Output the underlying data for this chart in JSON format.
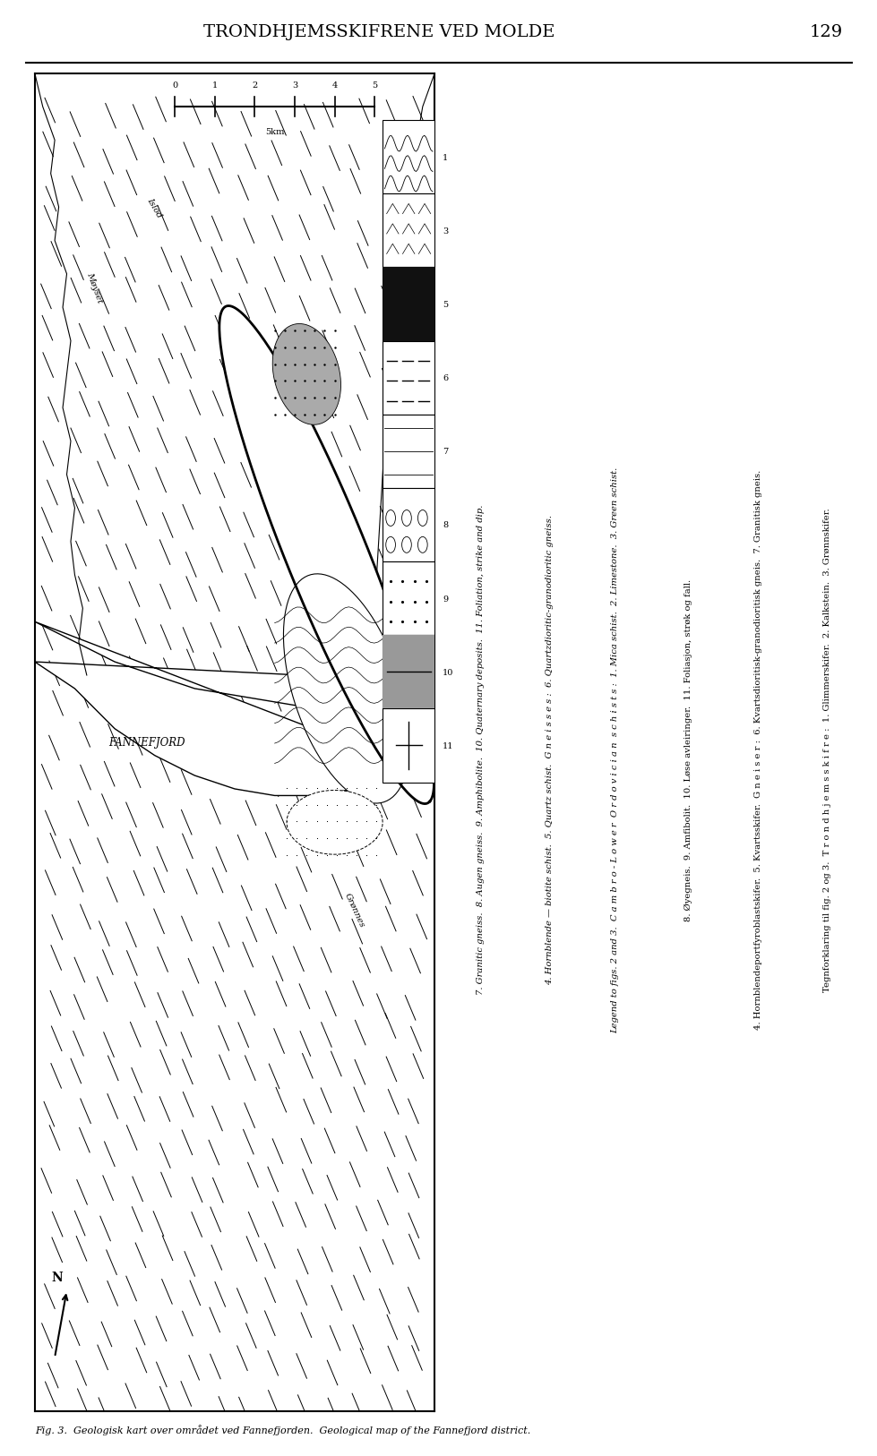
{
  "title": "TRONDHJEMSSKIFRENE VED MOLDE",
  "page_number": "129",
  "fig_no": "Fig. 3.",
  "caption_no": "Geologisk kart over området ved Fannefjorden.",
  "caption_en": "Geological map of the Fannefjord district.",
  "text_lines": [
    "Tegnforklaring til fig. 2 og 3.  T r o n d h j e m s s k i f r e :  1. Glimmerskifer.  2. Kalkstein.  3. Grønnskifer.",
    "4. Hornblendeportfyroblastskifer.  5. Kvartsskifer.  G n e i s e r :  6. Kvartsdioritisk-granodioritisk gneis.  7. Granitisk gneis.",
    "8. Øyegneis.  9. Amfibolit.  10. Løse avleiringer.  11. Foliasjon, strøk og fall.",
    "Legend to figs. 2 and 3.  C a m b r o - L o w e r  O r d o v i c i a n  s c h i s t s :  1. Mica schist.  2. Limestone.  3. Green schist.",
    "4. Hornblende — biotite schist.  5. Quartz schist.  G n e i s s e s :  6. Quartzdioritic-granodioritic gneiss.",
    "7. Granitic gneiss.  8. Augen gneiss.  9. Amphibolite.  10. Quaternary deposits.  11. Foliation, strike and dip."
  ],
  "text_italic": [
    false,
    false,
    false,
    true,
    true,
    true
  ],
  "legend_nums": [
    "1",
    "3",
    "5",
    "6",
    "7",
    "8",
    "9",
    "10",
    "11"
  ],
  "legend_pats": [
    "wavy",
    "chevron",
    "solid",
    "dash",
    "ldash",
    "circles",
    "dots",
    "grey",
    "cross"
  ],
  "bg_color": "#ffffff"
}
